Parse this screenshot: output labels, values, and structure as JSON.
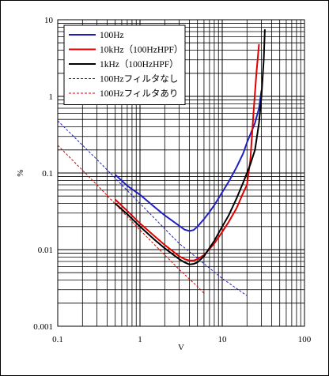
{
  "chart_data": {
    "type": "line",
    "xscale": "log",
    "yscale": "log",
    "xlim": [
      0.1,
      100
    ],
    "ylim": [
      0.001,
      10
    ],
    "grid": true,
    "legend_placement": "top-left",
    "xlabel": "V",
    "ylabel": "%",
    "x_tick_labels": [
      "0.1",
      "1",
      "10",
      "100"
    ],
    "y_tick_labels": [
      "0.001",
      "0.01",
      "0.1",
      "1",
      "10"
    ],
    "series": [
      {
        "name": "100Hz",
        "color": "#1f1fbf",
        "style": "solid",
        "x": [
          0.5,
          0.7,
          1,
          1.5,
          2,
          3,
          3.5,
          4,
          4.5,
          5,
          6,
          7,
          8,
          10,
          12,
          15,
          18,
          20,
          22,
          25,
          28,
          30
        ],
        "y": [
          0.095,
          0.068,
          0.052,
          0.036,
          0.028,
          0.0205,
          0.0182,
          0.0175,
          0.018,
          0.02,
          0.025,
          0.031,
          0.038,
          0.056,
          0.077,
          0.12,
          0.18,
          0.25,
          0.32,
          0.45,
          0.7,
          1.2
        ]
      },
      {
        "name": "10kHz（100HzHPF）",
        "color": "#e00000",
        "style": "solid",
        "x": [
          0.5,
          0.7,
          1,
          1.5,
          2,
          3,
          3.5,
          4,
          4.5,
          5,
          6,
          7,
          8,
          10,
          12,
          15,
          18,
          20,
          22,
          24,
          26,
          28
        ],
        "y": [
          0.045,
          0.032,
          0.022,
          0.015,
          0.0115,
          0.0082,
          0.0075,
          0.0072,
          0.0072,
          0.0075,
          0.0085,
          0.0102,
          0.012,
          0.017,
          0.023,
          0.035,
          0.055,
          0.07,
          0.15,
          0.6,
          2,
          4.8
        ]
      },
      {
        "name": "1kHz（100HzHPF）",
        "color": "#000000",
        "style": "solid",
        "x": [
          0.5,
          0.7,
          1,
          1.5,
          2,
          3,
          3.5,
          4,
          4.5,
          5,
          6,
          7,
          8,
          10,
          12,
          15,
          18,
          20,
          22,
          25,
          28,
          30,
          32,
          33
        ],
        "y": [
          0.04,
          0.029,
          0.02,
          0.0135,
          0.0104,
          0.0075,
          0.0068,
          0.0064,
          0.0065,
          0.0068,
          0.0082,
          0.0105,
          0.013,
          0.02,
          0.028,
          0.047,
          0.075,
          0.1,
          0.13,
          0.2,
          0.45,
          1,
          3,
          7.5
        ]
      },
      {
        "name": "100Hzフィルタなし",
        "color": "#1f1fbf",
        "style": "dashed",
        "x": [
          0.1,
          0.3,
          1,
          3,
          10,
          20
        ],
        "y": [
          0.48,
          0.15,
          0.04,
          0.012,
          0.0042,
          0.0025
        ]
      },
      {
        "name": "100Hzフィルタあり",
        "color": "#e00000",
        "style": "dashed",
        "x": [
          0.1,
          0.3,
          1,
          3,
          5,
          6
        ],
        "y": [
          0.23,
          0.07,
          0.018,
          0.0055,
          0.0033,
          0.0027
        ]
      }
    ]
  }
}
